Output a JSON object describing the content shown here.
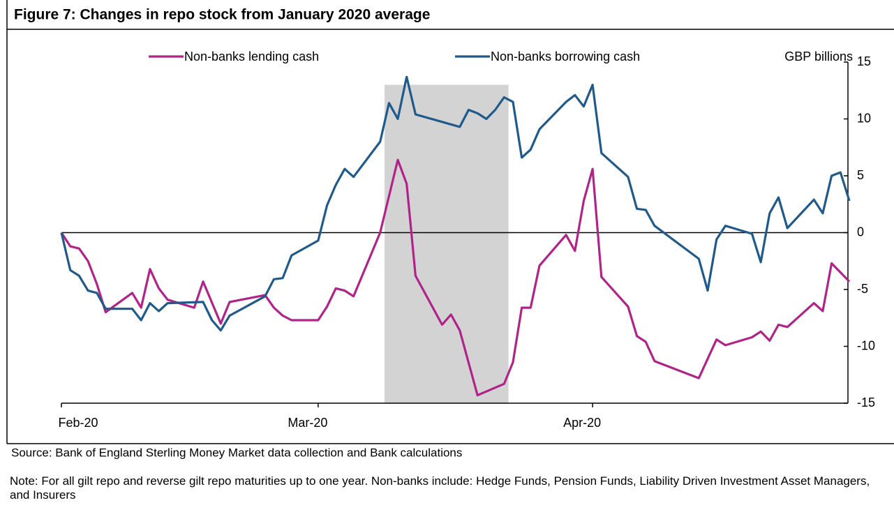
{
  "chart_data": {
    "type": "line",
    "title": "Figure 7: Changes in repo stock from January 2020 average",
    "y_label": "GBP billions",
    "source": "Source:  Bank of England Sterling Money Market data collection and Bank calculations",
    "note": "Note: For all gilt repo and reverse gilt repo maturities up to one year. Non-banks include: Hedge Funds, Pension Funds, Liability Driven Investment Asset Managers, and Insurers",
    "xlim": [
      0,
      89
    ],
    "xticks": [
      {
        "value": 0,
        "label": "Feb-20"
      },
      {
        "value": 29,
        "label": "Mar-20"
      },
      {
        "value": 60,
        "label": "Apr-20"
      }
    ],
    "ylim": [
      -15,
      15
    ],
    "yticks": [
      -15,
      -10,
      -5,
      0,
      5,
      10,
      15
    ],
    "zero_line": true,
    "shaded_region": {
      "x": [
        36.5,
        50.5
      ],
      "y": [
        -15,
        13
      ]
    },
    "shade_color": "#d4d3d4",
    "series": [
      {
        "name": "Non-banks lending cash",
        "color": "#b0248a",
        "x": [
          0,
          1,
          2,
          3,
          4,
          5,
          8,
          9,
          10,
          11,
          12,
          15,
          16,
          18,
          19,
          23,
          24,
          25,
          26,
          29,
          30,
          31,
          32,
          33,
          36,
          38,
          39,
          40,
          43,
          44,
          45,
          47,
          50,
          51,
          52,
          53,
          54,
          57,
          58,
          59,
          60,
          61,
          64,
          65,
          66,
          67,
          72,
          74,
          75,
          78,
          79,
          80,
          81,
          82,
          85,
          86,
          87,
          89
        ],
        "values": [
          0,
          -1.2,
          -1.4,
          -2.5,
          -4.5,
          -7.0,
          -5.3,
          -6.6,
          -3.2,
          -4.9,
          -5.9,
          -6.6,
          -4.3,
          -8.0,
          -6.1,
          -5.5,
          -6.6,
          -7.3,
          -7.7,
          -7.7,
          -6.5,
          -4.9,
          -5.1,
          -5.6,
          0,
          6.4,
          4.3,
          -3.8,
          -8.1,
          -7.2,
          -8.6,
          -14.3,
          -13.3,
          -11.4,
          -6.6,
          -6.6,
          -2.9,
          -0.2,
          -1.6,
          2.8,
          5.6,
          -3.9,
          -6.5,
          -9.1,
          -9.6,
          -11.3,
          -12.8,
          -9.4,
          -9.9,
          -9.2,
          -8.7,
          -9.5,
          -8.1,
          -8.3,
          -6.2,
          -6.9,
          -2.7,
          -4.3
        ]
      },
      {
        "name": "Non-banks borrowing cash",
        "color": "#1f5a8a",
        "x": [
          0,
          1,
          2,
          3,
          4,
          5,
          8,
          9,
          10,
          11,
          12,
          16,
          17,
          18,
          19,
          23,
          24,
          25,
          26,
          29,
          30,
          31,
          32,
          33,
          36,
          37,
          38,
          39,
          40,
          45,
          46,
          47,
          48,
          49,
          50,
          51,
          52,
          53,
          54,
          57,
          58,
          59,
          60,
          61,
          64,
          65,
          66,
          67,
          72,
          73,
          74,
          75,
          78,
          79,
          80,
          81,
          82,
          85,
          86,
          87,
          88,
          89
        ],
        "values": [
          0,
          -3.3,
          -3.8,
          -5.1,
          -5.3,
          -6.7,
          -6.7,
          -7.7,
          -6.2,
          -6.9,
          -6.2,
          -6.1,
          -7.7,
          -8.6,
          -7.3,
          -5.6,
          -4.1,
          -4.0,
          -2.0,
          -0.7,
          2.4,
          4.2,
          5.6,
          4.9,
          8.0,
          11.4,
          10.0,
          13.7,
          10.4,
          9.3,
          10.8,
          10.5,
          10.0,
          10.8,
          11.9,
          11.5,
          6.6,
          7.3,
          9.1,
          11.5,
          12.1,
          11.1,
          13.0,
          7.0,
          4.9,
          2.1,
          2.0,
          0.6,
          -2.3,
          -5.1,
          -0.6,
          0.6,
          -0.1,
          -2.6,
          1.7,
          3.1,
          0.4,
          2.9,
          1.7,
          5.0,
          5.3,
          2.8
        ]
      }
    ]
  }
}
